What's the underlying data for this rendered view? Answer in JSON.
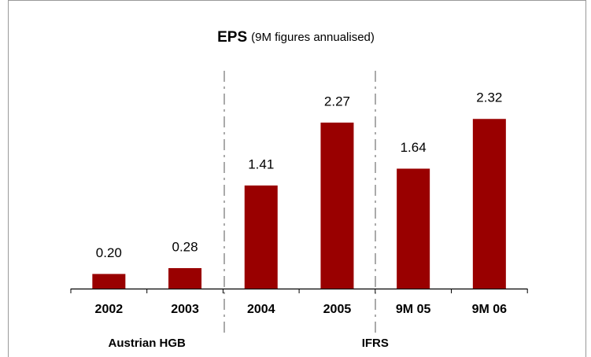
{
  "chart_data": {
    "type": "bar",
    "title": "EPS",
    "subtitle": "(9M figures annualised)",
    "categories": [
      "2002",
      "2003",
      "2004",
      "2005",
      "9M 05",
      "9M 06"
    ],
    "values": [
      0.2,
      0.28,
      1.41,
      2.27,
      1.64,
      2.32
    ],
    "value_labels": [
      "0.20",
      "0.28",
      "1.41",
      "2.27",
      "1.64",
      "2.32"
    ],
    "group_labels": [
      "Austrian HGB",
      "IFRS"
    ],
    "color": "#990000"
  }
}
